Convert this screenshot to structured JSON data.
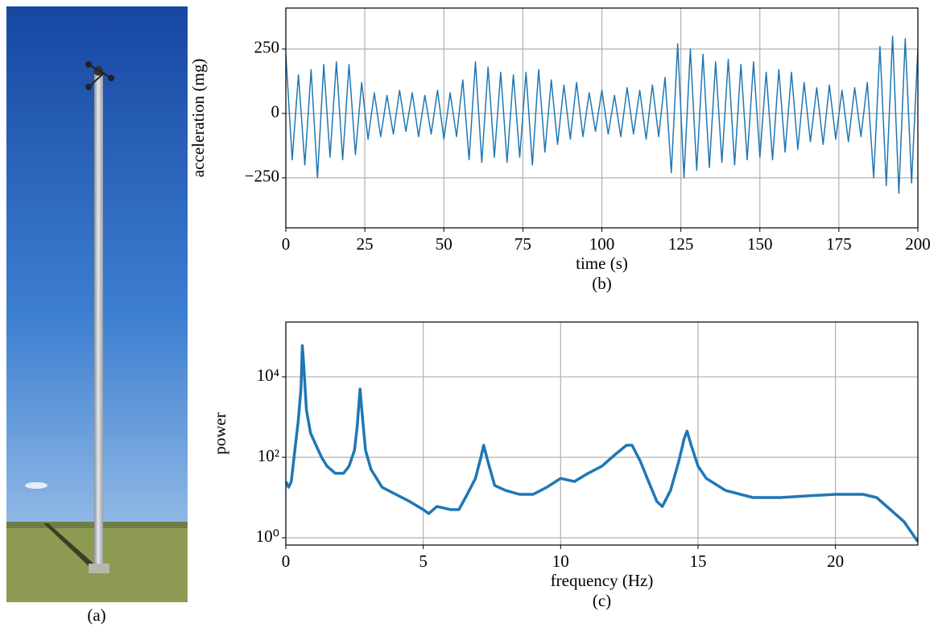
{
  "photo": {
    "caption": "(a)"
  },
  "chart_data": [
    {
      "type": "line",
      "caption": "(b)",
      "xlabel": "time (s)",
      "ylabel": "acceleration (mg)",
      "color": "#1f77b4",
      "grid": true,
      "log_y": false,
      "xlim": [
        0,
        200
      ],
      "ylim": [
        -444,
        409
      ],
      "xticks": [
        0,
        25,
        50,
        75,
        100,
        125,
        150,
        175,
        200
      ],
      "yticks": [
        {
          "value": -250,
          "label": "−250"
        },
        0,
        250
      ],
      "x": [
        0,
        2,
        4,
        6,
        8,
        10,
        12,
        14,
        16,
        18,
        20,
        22,
        24,
        26,
        28,
        30,
        32,
        34,
        36,
        38,
        40,
        42,
        44,
        46,
        48,
        50,
        52,
        54,
        56,
        58,
        60,
        62,
        64,
        66,
        68,
        70,
        72,
        74,
        76,
        78,
        80,
        82,
        84,
        86,
        88,
        90,
        92,
        94,
        96,
        98,
        100,
        102,
        104,
        106,
        108,
        110,
        112,
        114,
        116,
        118,
        120,
        122,
        124,
        126,
        128,
        130,
        132,
        134,
        136,
        138,
        140,
        142,
        144,
        146,
        148,
        150,
        152,
        154,
        156,
        158,
        160,
        162,
        164,
        166,
        168,
        170,
        172,
        174,
        176,
        178,
        180,
        182,
        184,
        186,
        188,
        190,
        192,
        194,
        196,
        198,
        200
      ],
      "values": [
        230,
        -180,
        150,
        -200,
        170,
        -250,
        190,
        -170,
        200,
        -180,
        190,
        -160,
        120,
        -100,
        80,
        -90,
        70,
        -80,
        90,
        -70,
        80,
        -90,
        70,
        -80,
        90,
        -100,
        80,
        -90,
        130,
        -180,
        200,
        -190,
        180,
        -170,
        160,
        -190,
        150,
        -170,
        160,
        -200,
        170,
        -150,
        130,
        -120,
        110,
        -100,
        120,
        -90,
        80,
        -70,
        90,
        -80,
        70,
        -90,
        100,
        -80,
        90,
        -100,
        110,
        -90,
        140,
        -230,
        270,
        -250,
        250,
        -220,
        230,
        -210,
        200,
        -190,
        210,
        -200,
        190,
        -180,
        200,
        -170,
        160,
        -180,
        170,
        -150,
        160,
        -140,
        120,
        -110,
        100,
        -120,
        110,
        -100,
        90,
        -110,
        100,
        -90,
        120,
        -250,
        260,
        -280,
        300,
        -310,
        290,
        -270,
        250
      ]
    },
    {
      "type": "line",
      "caption": "(c)",
      "xlabel": "frequency (Hz)",
      "ylabel": "power",
      "color": "#1f77b4",
      "grid": true,
      "log_y": true,
      "xlim": [
        0,
        23
      ],
      "ylim": [
        0.66,
        230000
      ],
      "xticks": [
        0,
        5,
        10,
        15,
        20
      ],
      "yticks": [
        {
          "value": 1,
          "label": "10⁰"
        },
        {
          "value": 100,
          "label": "10²"
        },
        {
          "value": 10000,
          "label": "10⁴"
        }
      ],
      "x": [
        0,
        0.1,
        0.2,
        0.3,
        0.45,
        0.55,
        0.6,
        0.65,
        0.75,
        0.9,
        1.1,
        1.3,
        1.5,
        1.8,
        2.1,
        2.3,
        2.5,
        2.6,
        2.7,
        2.8,
        2.9,
        3.1,
        3.5,
        4,
        4.5,
        5,
        5.2,
        5.5,
        6,
        6.3,
        6.6,
        6.9,
        7.1,
        7.2,
        7.35,
        7.6,
        8,
        8.5,
        9,
        9.5,
        10,
        10.5,
        11,
        11.5,
        12,
        12.4,
        12.6,
        12.9,
        13.2,
        13.5,
        13.7,
        14,
        14.3,
        14.5,
        14.6,
        14.75,
        15,
        15.3,
        16,
        17,
        18,
        19,
        20,
        21,
        21.5,
        22,
        22.5,
        23
      ],
      "values": [
        25,
        18,
        25,
        100,
        800,
        5000,
        60000,
        20000,
        1500,
        400,
        200,
        100,
        60,
        40,
        40,
        60,
        150,
        600,
        5000,
        800,
        150,
        50,
        18,
        12,
        8,
        5,
        4,
        6,
        5,
        5,
        12,
        30,
        100,
        200,
        80,
        20,
        15,
        12,
        12,
        18,
        30,
        25,
        40,
        60,
        120,
        200,
        200,
        80,
        25,
        8,
        6,
        15,
        80,
        300,
        450,
        200,
        60,
        30,
        15,
        10,
        10,
        11,
        12,
        12,
        10,
        5,
        2.5,
        0.8
      ]
    }
  ]
}
